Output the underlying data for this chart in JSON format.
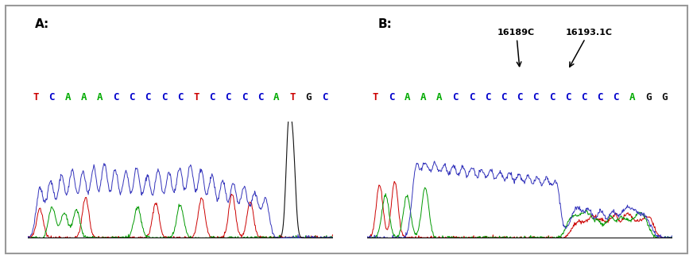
{
  "panel_A_label": "A:",
  "panel_B_label": "B:",
  "seq_A": [
    {
      "char": "T",
      "color": "#cc0000"
    },
    {
      "char": "C",
      "color": "#0000cc"
    },
    {
      "char": "A",
      "color": "#00aa00"
    },
    {
      "char": "A",
      "color": "#00aa00"
    },
    {
      "char": "A",
      "color": "#00aa00"
    },
    {
      "char": "C",
      "color": "#0000cc"
    },
    {
      "char": "C",
      "color": "#0000cc"
    },
    {
      "char": "C",
      "color": "#0000cc"
    },
    {
      "char": "C",
      "color": "#0000cc"
    },
    {
      "char": "C",
      "color": "#0000cc"
    },
    {
      "char": "T",
      "color": "#cc0000"
    },
    {
      "char": "C",
      "color": "#0000cc"
    },
    {
      "char": "C",
      "color": "#0000cc"
    },
    {
      "char": "C",
      "color": "#0000cc"
    },
    {
      "char": "C",
      "color": "#0000cc"
    },
    {
      "char": "A",
      "color": "#00aa00"
    },
    {
      "char": "T",
      "color": "#cc0000"
    },
    {
      "char": "G",
      "color": "#111111"
    },
    {
      "char": "C",
      "color": "#0000cc"
    }
  ],
  "seq_B": [
    {
      "char": "T",
      "color": "#cc0000"
    },
    {
      "char": "C",
      "color": "#0000cc"
    },
    {
      "char": "A",
      "color": "#00aa00"
    },
    {
      "char": "A",
      "color": "#00aa00"
    },
    {
      "char": "A",
      "color": "#00aa00"
    },
    {
      "char": "C",
      "color": "#0000cc"
    },
    {
      "char": "C",
      "color": "#0000cc"
    },
    {
      "char": "C",
      "color": "#0000cc"
    },
    {
      "char": "C",
      "color": "#0000cc"
    },
    {
      "char": "C",
      "color": "#0000cc"
    },
    {
      "char": "C",
      "color": "#0000cc"
    },
    {
      "char": "C",
      "color": "#0000cc"
    },
    {
      "char": "C",
      "color": "#0000cc"
    },
    {
      "char": "C",
      "color": "#0000cc"
    },
    {
      "char": "C",
      "color": "#0000cc"
    },
    {
      "char": "C",
      "color": "#0000cc"
    },
    {
      "char": "A",
      "color": "#00aa00"
    },
    {
      "char": "G",
      "color": "#111111"
    },
    {
      "char": "G",
      "color": "#111111"
    }
  ],
  "annotation_1": "16189C",
  "annotation_2": "16193.1C",
  "bg_color": "#ffffff",
  "label_fontsize": 11,
  "seq_fontsize": 9,
  "ann_fontsize": 8,
  "bar_color": "#c8b8a0",
  "blue": "#3333bb",
  "green": "#009900",
  "red": "#cc0000",
  "black": "#111111"
}
